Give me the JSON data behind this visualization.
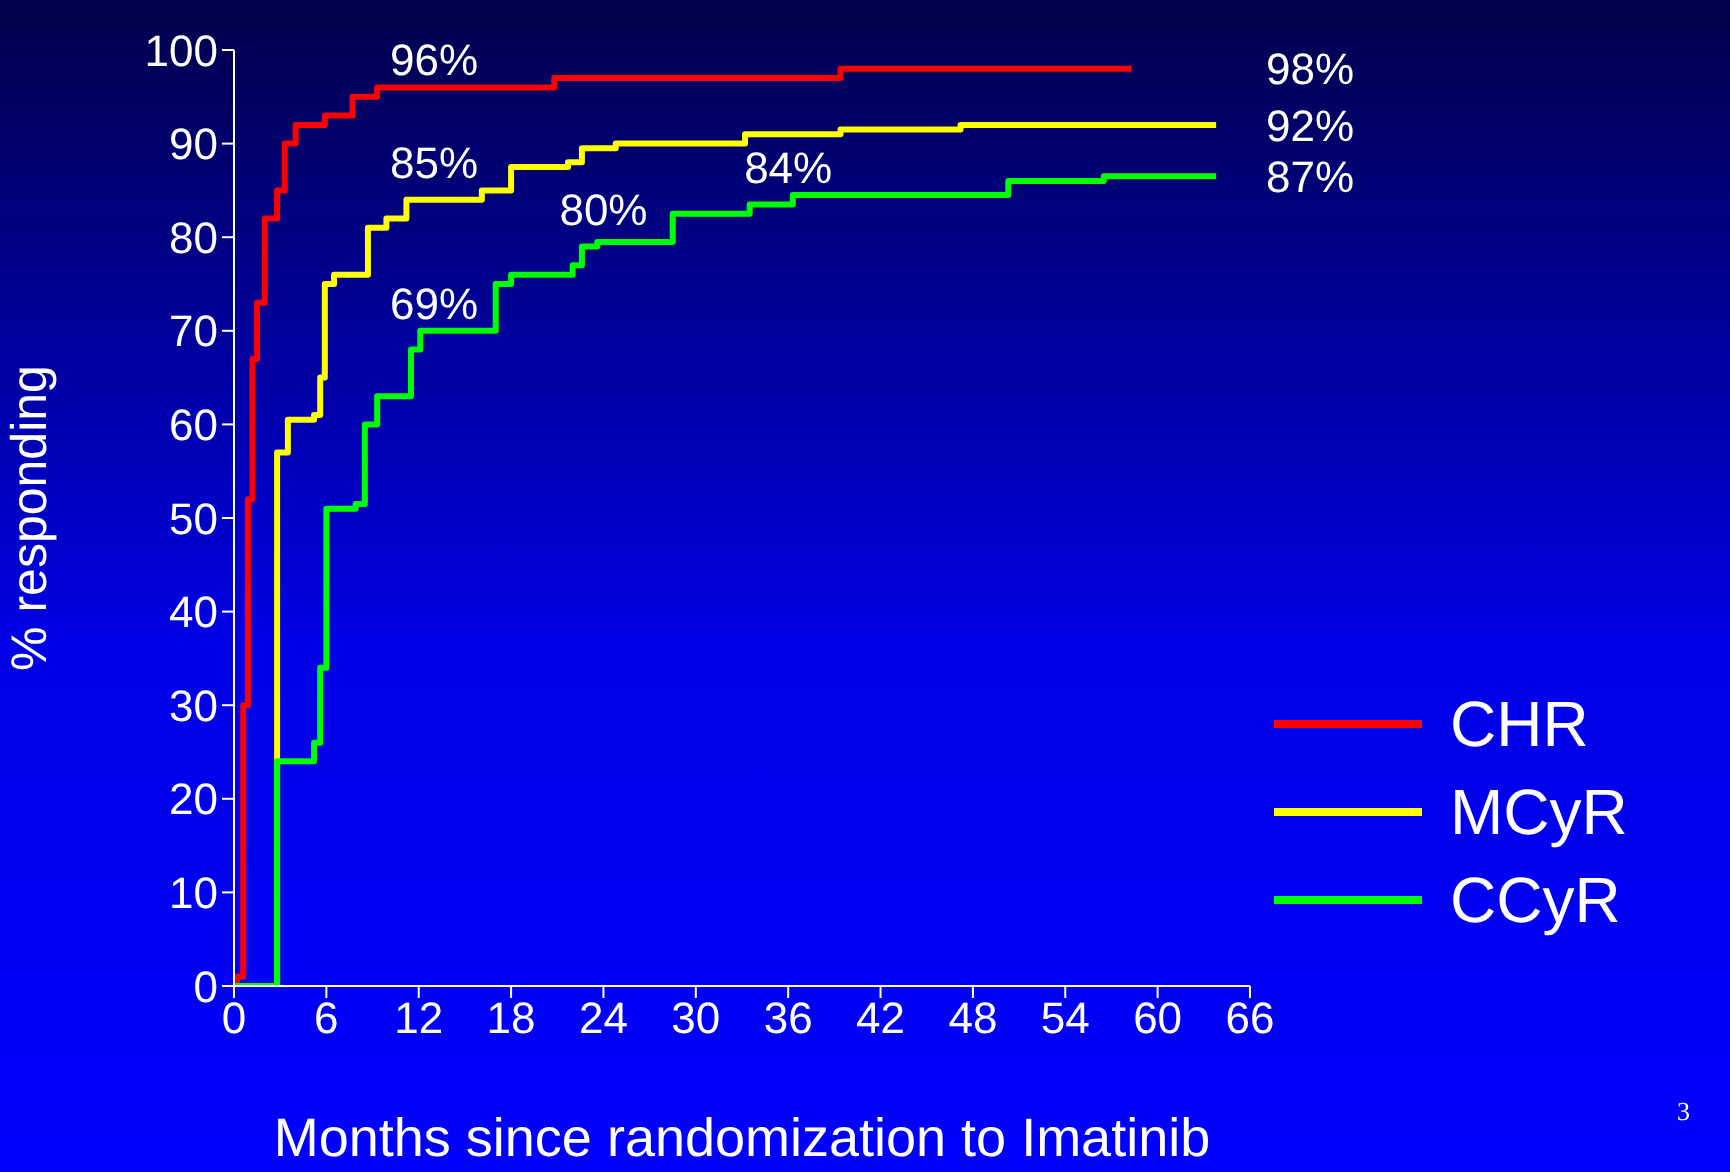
{
  "chart_data": {
    "type": "step",
    "xlabel": "Months since randomization to Imatinib",
    "ylabel": "% responding",
    "xlim": [
      0,
      66
    ],
    "xticks": [
      0,
      6,
      12,
      18,
      24,
      30,
      36,
      42,
      48,
      54,
      60,
      66
    ],
    "ylim": [
      0,
      100
    ],
    "yticks": [
      0,
      10,
      20,
      30,
      40,
      50,
      60,
      70,
      80,
      90,
      100
    ],
    "grid": false,
    "legend": "bottom right",
    "marker": "none",
    "line_style": "solid",
    "series": [
      {
        "name": "CHR",
        "color": "#ff0000",
        "x": [
          0,
          0.2,
          0.6,
          0.9,
          1.2,
          1.5,
          2,
          2.8,
          3.3,
          4,
          5.9,
          7.7,
          9.3,
          14,
          20.8,
          36.3,
          39.4,
          47.5,
          58.3
        ],
        "values": [
          0,
          1,
          30,
          52,
          67,
          73,
          82,
          85,
          90,
          92,
          93,
          95,
          96,
          96,
          97,
          97,
          98,
          98,
          98
        ]
      },
      {
        "name": "MCyR",
        "color": "#ffff00",
        "x": [
          0,
          2.8,
          3.5,
          5.2,
          5.6,
          5.9,
          6.5,
          8.2,
          8.7,
          9.9,
          11.2,
          16.1,
          18,
          21.7,
          22.6,
          24.8,
          33.2,
          39.4,
          47.2,
          63.8
        ],
        "values": [
          0,
          57,
          60.5,
          61,
          65,
          75,
          76,
          76,
          81,
          82,
          84,
          85,
          87.5,
          88,
          89.5,
          90,
          91,
          91.5,
          92,
          92
        ]
      },
      {
        "name": "CCyR",
        "color": "#00ff00",
        "x": [
          0,
          2.8,
          5.2,
          5.6,
          6,
          7.9,
          8.5,
          9.3,
          11,
          11.5,
          12.1,
          15.8,
          17,
          18,
          22,
          22.6,
          23.6,
          27,
          28.5,
          32.9,
          33.5,
          36.3,
          44.4,
          50.3,
          56.5,
          63.8
        ],
        "values": [
          0,
          24,
          26,
          34,
          51,
          51.5,
          60,
          63,
          63,
          68,
          70,
          70,
          75,
          76,
          77,
          79,
          79.5,
          79.5,
          82.5,
          82.5,
          83.5,
          84.5,
          84.5,
          86,
          86.5,
          86.5
        ]
      }
    ],
    "annotations": [
      {
        "text": "96%",
        "x": 13,
        "y": 96
      },
      {
        "text": "85%",
        "x": 13,
        "y": 85
      },
      {
        "text": "69%",
        "x": 13,
        "y": 70
      },
      {
        "text": "80%",
        "x": 24,
        "y": 80
      },
      {
        "text": "84%",
        "x": 36,
        "y": 84.5
      },
      "98%",
      "92%",
      "87%",
      "3"
    ]
  }
}
